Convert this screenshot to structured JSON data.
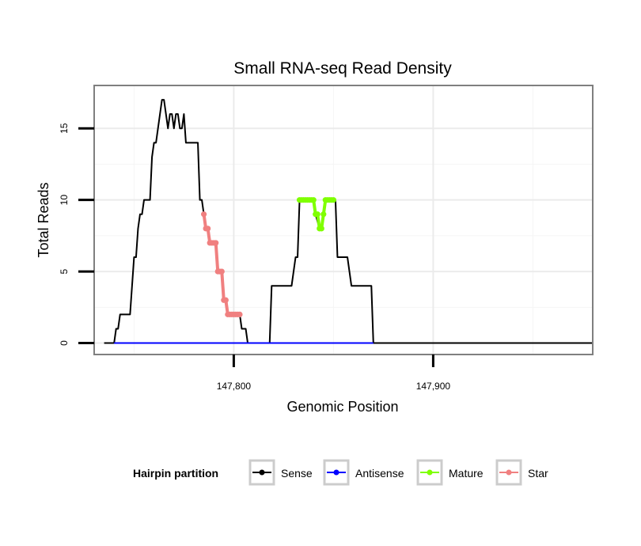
{
  "chart_data": {
    "type": "line",
    "title": "Small RNA-seq Read Density",
    "xlabel": "Genomic Position",
    "ylabel": "Total Reads",
    "xlim": [
      147730,
      147980
    ],
    "ylim": [
      -0.8,
      18
    ],
    "x_ticks": [
      147800,
      147900
    ],
    "x_tick_labels": [
      "147,800",
      "147,900"
    ],
    "x_minor_gridlines": [
      147750,
      147850,
      147950
    ],
    "y_ticks": [
      0,
      5,
      10,
      15
    ],
    "y_tick_labels": [
      "0",
      "5",
      "10",
      "15"
    ],
    "y_minor_gridlines": [
      2.5,
      7.5,
      12.5
    ],
    "grid": true,
    "legend": {
      "title": "Hairpin partition",
      "position": "bottom",
      "entries": [
        {
          "label": "Sense",
          "color": "#000000"
        },
        {
          "label": "Antisense",
          "color": "#0000ff"
        },
        {
          "label": "Mature",
          "color": "#7fff00"
        },
        {
          "label": "Star",
          "color": "#f08080"
        }
      ]
    },
    "series": [
      {
        "name": "Sense",
        "color": "#000000",
        "points": [
          [
            147735,
            0
          ],
          [
            147740,
            0
          ],
          [
            147741,
            1
          ],
          [
            147742,
            1
          ],
          [
            147743,
            2
          ],
          [
            147746,
            2
          ],
          [
            147748,
            2
          ],
          [
            147749,
            4
          ],
          [
            147750,
            6
          ],
          [
            147751,
            6
          ],
          [
            147752,
            8
          ],
          [
            147753,
            9
          ],
          [
            147754,
            9
          ],
          [
            147755,
            10
          ],
          [
            147758,
            10
          ],
          [
            147759,
            13
          ],
          [
            147760,
            14
          ],
          [
            147761,
            14
          ],
          [
            147762,
            15
          ],
          [
            147763,
            16
          ],
          [
            147764,
            17
          ],
          [
            147765,
            17
          ],
          [
            147766,
            16
          ],
          [
            147767,
            15
          ],
          [
            147768,
            16
          ],
          [
            147769,
            16
          ],
          [
            147770,
            15
          ],
          [
            147771,
            16
          ],
          [
            147772,
            16
          ],
          [
            147773,
            15
          ],
          [
            147774,
            15
          ],
          [
            147775,
            16
          ],
          [
            147776,
            14
          ],
          [
            147777,
            14
          ],
          [
            147782,
            14
          ],
          [
            147783,
            10
          ],
          [
            147784,
            10
          ],
          [
            147785,
            9
          ],
          [
            147786,
            8
          ],
          [
            147787,
            8
          ],
          [
            147788,
            7
          ],
          [
            147791,
            7
          ],
          [
            147792,
            5
          ],
          [
            147794,
            5
          ],
          [
            147795,
            3
          ],
          [
            147796,
            3
          ],
          [
            147797,
            2
          ],
          [
            147803,
            2
          ],
          [
            147804,
            1
          ],
          [
            147806,
            1
          ],
          [
            147807,
            0
          ],
          [
            147818,
            0
          ],
          [
            147819,
            4
          ],
          [
            147829,
            4
          ],
          [
            147830,
            5
          ],
          [
            147831,
            6
          ],
          [
            147832,
            6
          ],
          [
            147833,
            10
          ],
          [
            147840,
            10
          ],
          [
            147841,
            9
          ],
          [
            147843,
            8
          ],
          [
            147844,
            8
          ],
          [
            147845,
            9
          ],
          [
            147846,
            10
          ],
          [
            147851,
            10
          ],
          [
            147852,
            6
          ],
          [
            147857,
            6
          ],
          [
            147858,
            5
          ],
          [
            147859,
            4
          ],
          [
            147869,
            4
          ],
          [
            147870,
            0
          ],
          [
            147980,
            0
          ]
        ]
      },
      {
        "name": "Antisense",
        "color": "#0000ff",
        "points": [
          [
            147740,
            0
          ],
          [
            147870,
            0
          ]
        ]
      },
      {
        "name": "Mature",
        "color": "#7fff00",
        "points": [
          [
            147833,
            10
          ],
          [
            147834,
            10
          ],
          [
            147835,
            10
          ],
          [
            147836,
            10
          ],
          [
            147837,
            10
          ],
          [
            147838,
            10
          ],
          [
            147839,
            10
          ],
          [
            147840,
            10
          ],
          [
            147841,
            9
          ],
          [
            147842,
            9
          ],
          [
            147843,
            8
          ],
          [
            147844,
            8
          ],
          [
            147845,
            9
          ],
          [
            147846,
            10
          ],
          [
            147847,
            10
          ],
          [
            147848,
            10
          ],
          [
            147849,
            10
          ],
          [
            147850,
            10
          ]
        ]
      },
      {
        "name": "Star",
        "color": "#f08080",
        "points": [
          [
            147785,
            9
          ],
          [
            147786,
            8
          ],
          [
            147787,
            8
          ],
          [
            147788,
            7
          ],
          [
            147789,
            7
          ],
          [
            147790,
            7
          ],
          [
            147791,
            7
          ],
          [
            147792,
            5
          ],
          [
            147793,
            5
          ],
          [
            147794,
            5
          ],
          [
            147795,
            3
          ],
          [
            147796,
            3
          ],
          [
            147797,
            2
          ],
          [
            147798,
            2
          ],
          [
            147799,
            2
          ],
          [
            147800,
            2
          ],
          [
            147801,
            2
          ],
          [
            147802,
            2
          ],
          [
            147803,
            2
          ]
        ]
      }
    ]
  }
}
